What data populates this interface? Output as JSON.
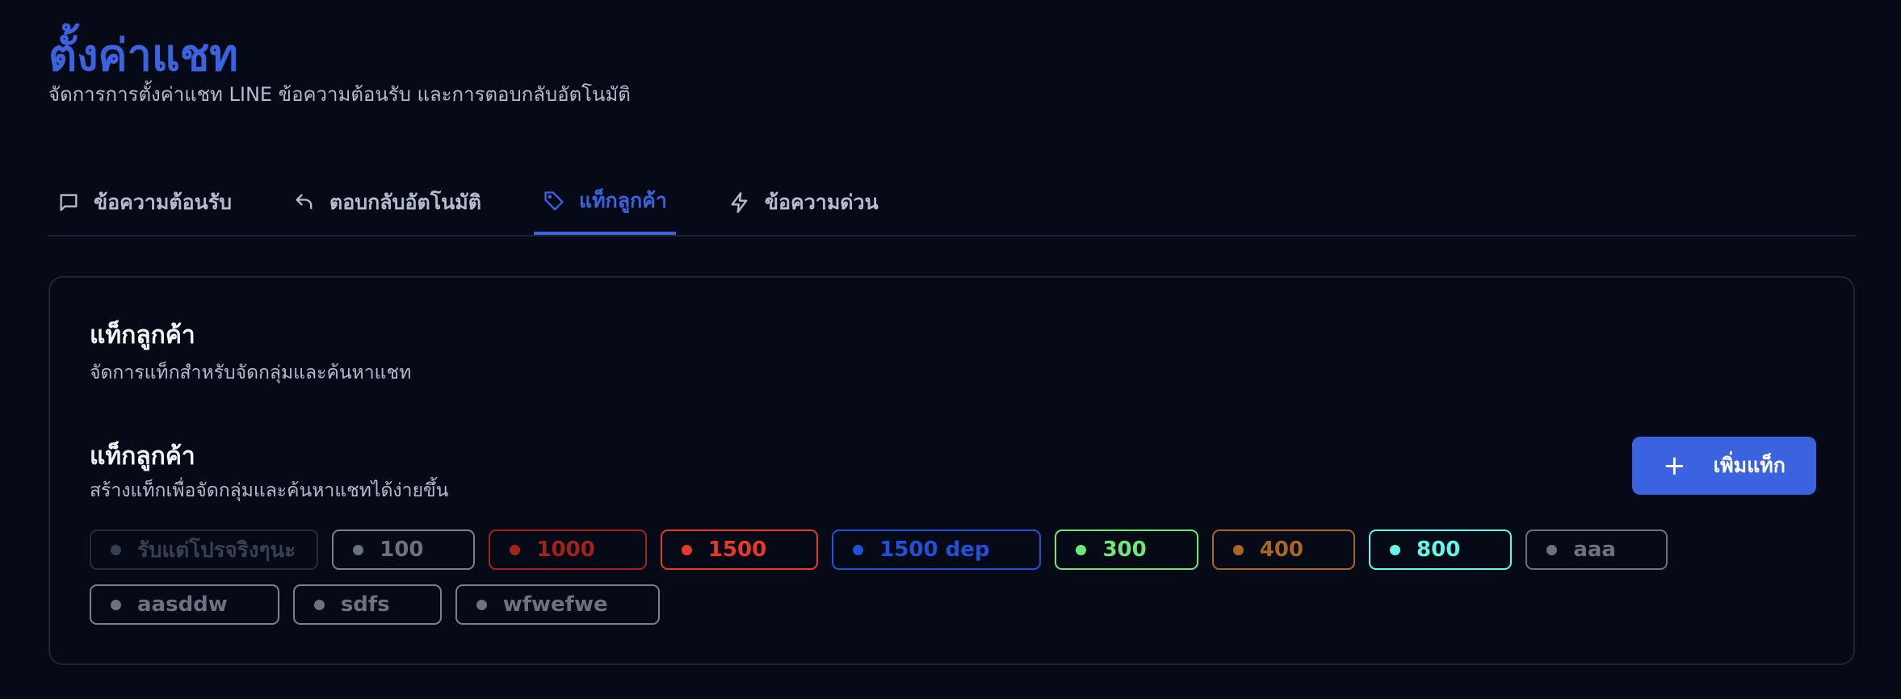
{
  "header": {
    "title": "ตั้งค่าแชท",
    "subtitle": "จัดการการตั้งค่าแชท LINE ข้อความต้อนรับ และการตอบกลับอัตโนมัติ"
  },
  "tabs": [
    {
      "label": "ข้อความต้อนรับ",
      "icon": "message-square-icon",
      "active": false
    },
    {
      "label": "ตอบกลับอัตโนมัติ",
      "icon": "reply-icon",
      "active": false
    },
    {
      "label": "แท็กลูกค้า",
      "icon": "tag-icon",
      "active": true
    },
    {
      "label": "ข้อความด่วน",
      "icon": "zap-icon",
      "active": false
    }
  ],
  "card": {
    "title": "แท็กลูกค้า",
    "subtitle": "จัดการแท็กสำหรับจัดกลุ่มและค้นหาแชท",
    "section_title": "แท็กลูกค้า",
    "section_subtitle": "สร้างแท็กเพื่อจัดกลุ่มและค้นหาแชทได้ง่ายขึ้น",
    "add_button": "เพิ่มแท็ก",
    "tags": [
      {
        "label": "รับแต่โปรจริงๆนะ",
        "color": "#374151",
        "border": "#262c38"
      },
      {
        "label": "100",
        "color": "#6b7280",
        "border": "#7b808a"
      },
      {
        "label": "1000",
        "color": "#a3231b",
        "border": "#a3231b"
      },
      {
        "label": "1500",
        "color": "#e5392c",
        "border": "#e5392c"
      },
      {
        "label": "1500 dep",
        "color": "#2350d8",
        "border": "#2350d8"
      },
      {
        "label": "300",
        "color": "#6ee77a",
        "border": "#6ee77a"
      },
      {
        "label": "400",
        "color": "#a86528",
        "border": "#a86528"
      },
      {
        "label": "800",
        "color": "#67f5e8",
        "border": "#67f5e8"
      },
      {
        "label": "aaa",
        "color": "#6b7280",
        "border": "#6b7280"
      },
      {
        "label": "aasddw",
        "color": "#6b7280",
        "border": "#7b808a"
      },
      {
        "label": "sdfs",
        "color": "#6b7280",
        "border": "#7b808a"
      },
      {
        "label": "wfwefwe",
        "color": "#6b7280",
        "border": "#7b808a"
      }
    ]
  },
  "colors": {
    "accent": "#3b63e0",
    "background": "#050a16"
  }
}
